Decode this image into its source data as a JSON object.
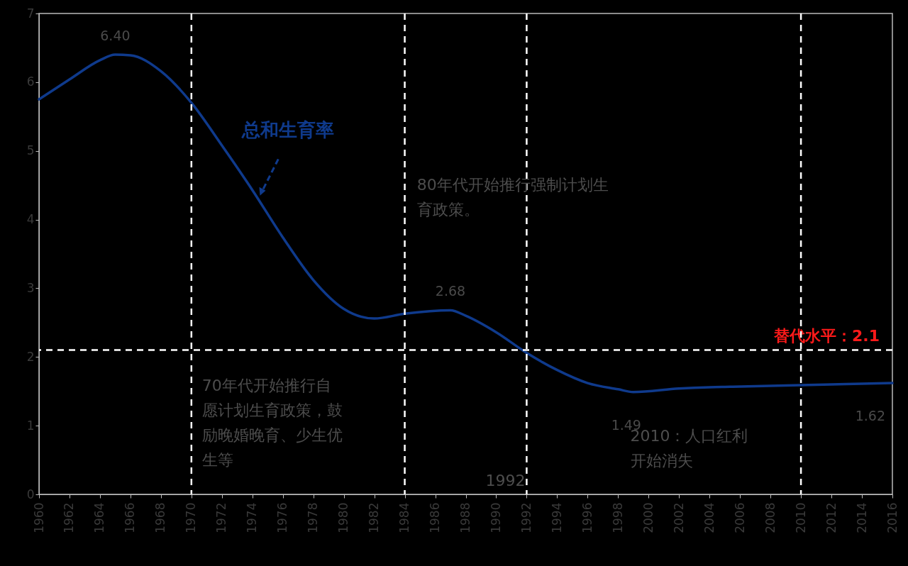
{
  "chart_data": {
    "type": "line",
    "xlim": [
      1960,
      2016
    ],
    "xticks": [
      1960,
      1962,
      1964,
      1966,
      1968,
      1970,
      1972,
      1974,
      1976,
      1978,
      1980,
      1982,
      1984,
      1986,
      1988,
      1990,
      1992,
      1994,
      1996,
      1998,
      2000,
      2002,
      2004,
      2006,
      2008,
      2010,
      2012,
      2014,
      2016
    ],
    "ylim": [
      0,
      7
    ],
    "yticks": [
      0,
      1,
      2,
      3,
      4,
      5,
      6,
      7
    ],
    "grid": false,
    "legend": false,
    "series": [
      {
        "name": "总和生育率",
        "color": "#0f3a8c",
        "x": [
          1960,
          1962,
          1964,
          1965,
          1966,
          1968,
          1970,
          1972,
          1974,
          1976,
          1978,
          1980,
          1982,
          1984,
          1987,
          1988,
          1990,
          1992,
          1994,
          1996,
          1998,
          1999,
          2002,
          2004,
          2006,
          2008,
          2010,
          2012,
          2014,
          2016
        ],
        "values": [
          5.75,
          6.04,
          6.32,
          6.4,
          6.39,
          6.16,
          5.7,
          5.08,
          4.43,
          3.74,
          3.12,
          2.7,
          2.56,
          2.63,
          2.68,
          2.6,
          2.36,
          2.06,
          1.81,
          1.62,
          1.53,
          1.49,
          1.54,
          1.56,
          1.57,
          1.58,
          1.59,
          1.6,
          1.61,
          1.62
        ]
      }
    ],
    "ref_lines": [
      {
        "axis": "y",
        "value": 2.1,
        "label": "替代水平：2.1",
        "color": "#ffffff",
        "line_style": "dashed"
      },
      {
        "axis": "x",
        "value": 1970,
        "color": "#ffffff",
        "line_style": "dashed"
      },
      {
        "axis": "x",
        "value": 1984,
        "color": "#ffffff",
        "line_style": "dashed"
      },
      {
        "axis": "x",
        "value": 1992,
        "color": "#ffffff",
        "line_style": "dashed"
      },
      {
        "axis": "x",
        "value": 2010,
        "color": "#ffffff",
        "line_style": "dashed"
      }
    ],
    "annotations": [
      {
        "text": "6.40",
        "x": 1965,
        "y": 6.4
      },
      {
        "text": "2.68",
        "x": 1987,
        "y": 2.68
      },
      {
        "text": "1.49",
        "x": 1999,
        "y": 1.49
      },
      {
        "text": "1.62",
        "x": 2016,
        "y": 1.62
      },
      "70年代开始推行自愿计划生育政策，鼓励晚婚晚育、少生优生等",
      "80年代开始推行强制计划生育政策。",
      "1992",
      "2010：人口红利开始消失"
    ]
  }
}
